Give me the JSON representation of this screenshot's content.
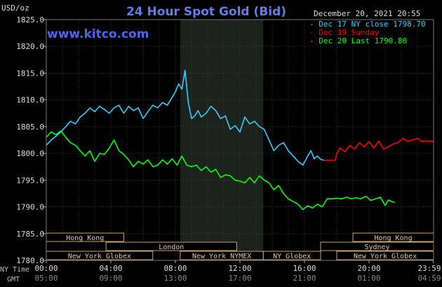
{
  "chart_data": {
    "type": "line",
    "title": "24 Hour Spot Gold (Bid)",
    "watermark": "www.kitco.com",
    "ylabel": "USD/oz",
    "date_label": "December 20, 2021 20:55",
    "ylim": [
      1780,
      1825
    ],
    "xlim_hours": [
      0,
      24
    ],
    "grid": true,
    "legend_position": "top-right",
    "y_ticks": [
      "1825.0",
      "1820.0",
      "1815.0",
      "1810.0",
      "1805.0",
      "1800.0",
      "1795.0",
      "1790.0",
      "1785.0",
      "1780.0"
    ],
    "y_tick_values": [
      1825,
      1820,
      1815,
      1810,
      1805,
      1800,
      1795,
      1790,
      1785,
      1780
    ],
    "x_tick_hours": [
      0,
      4,
      8,
      12,
      16,
      20,
      23.983
    ],
    "x_ticks_ny": [
      "00:00",
      "04:00",
      "08:00",
      "12:00",
      "16:00",
      "20:00",
      "23:59"
    ],
    "x_ticks_gmt": [
      "05:00",
      "09:00",
      "13:00",
      "17:00",
      "21:00",
      "01:00",
      "04:59"
    ],
    "row_label_ny": "NY Time",
    "row_label_gmt": "GMT",
    "highlight_hours": [
      8.3,
      13.45
    ],
    "sessions": [
      {
        "label": "Hong Kong",
        "start": 0,
        "end": 4.8,
        "row": 0,
        "align": "center"
      },
      {
        "label": "London",
        "start": 3.7,
        "end": 11.8,
        "row": 1,
        "align": "center"
      },
      {
        "label": "New York Globex",
        "start": 0,
        "end": 6.6,
        "row": 2,
        "align": "center"
      },
      {
        "label": "New York NYMEX",
        "start": 8.3,
        "end": 13.45,
        "row": 2,
        "align": "center"
      },
      {
        "label": "NY Globex",
        "start": 13.45,
        "end": 17.0,
        "row": 2,
        "align": "center"
      },
      {
        "label": "Hong Kong",
        "start": 19.0,
        "end": 24,
        "row": 0,
        "align": "center"
      },
      {
        "label": "Sydney",
        "start": 17.0,
        "end": 24,
        "row": 1,
        "align": "center"
      },
      {
        "label": "New York Globex",
        "start": 18.0,
        "end": 24,
        "row": 2,
        "align": "center"
      }
    ],
    "series": [
      {
        "name": "Dec 17 NY close 1798.70",
        "color": "#33ccff",
        "x": [
          0,
          0.3,
          0.6,
          0.9,
          1.2,
          1.5,
          1.8,
          2.1,
          2.4,
          2.7,
          3.0,
          3.3,
          3.6,
          3.9,
          4.2,
          4.5,
          4.8,
          5.1,
          5.4,
          5.7,
          6.0,
          6.3,
          6.6,
          6.9,
          7.2,
          7.5,
          7.8,
          8.0,
          8.2,
          8.4,
          8.6,
          8.8,
          9.0,
          9.2,
          9.4,
          9.6,
          9.9,
          10.2,
          10.5,
          10.8,
          11.1,
          11.4,
          11.7,
          12.0,
          12.3,
          12.6,
          12.9,
          13.2,
          13.5,
          13.8,
          14.1,
          14.4,
          14.7,
          15.0,
          15.3,
          15.6,
          15.9,
          16.2,
          16.4,
          16.6,
          16.8,
          17.0,
          17.2
        ],
        "y": [
          1801.5,
          1802.5,
          1803.2,
          1804.0,
          1805.0,
          1806.0,
          1805.5,
          1806.8,
          1807.5,
          1808.5,
          1807.8,
          1808.8,
          1808.2,
          1807.5,
          1808.5,
          1809.0,
          1807.5,
          1808.8,
          1808.0,
          1808.5,
          1806.5,
          1807.8,
          1809.0,
          1808.5,
          1809.5,
          1809.0,
          1810.5,
          1811.5,
          1813.0,
          1812.0,
          1815.5,
          1809.5,
          1806.5,
          1807.0,
          1808.0,
          1806.8,
          1807.5,
          1808.8,
          1808.0,
          1806.5,
          1807.0,
          1804.5,
          1805.2,
          1804.0,
          1806.8,
          1805.5,
          1806.0,
          1805.0,
          1804.5,
          1802.5,
          1800.5,
          1801.5,
          1802.0,
          1800.5,
          1799.5,
          1798.5,
          1797.8,
          1799.5,
          1800.5,
          1799.0,
          1799.5,
          1798.9,
          1798.7
        ]
      },
      {
        "name": "Dec 19 Sunday",
        "color": "#ff0000",
        "x": [
          17.2,
          17.5,
          17.9,
          18.0,
          18.2,
          18.5,
          18.8,
          19.1,
          19.4,
          19.7,
          20.0,
          20.3,
          20.6,
          20.9,
          21.2,
          21.5,
          21.8,
          22.1,
          22.4,
          22.7,
          23.0,
          23.3,
          23.6,
          23.98
        ],
        "y": [
          1798.7,
          1798.7,
          1798.7,
          1800.0,
          1801.0,
          1800.3,
          1801.5,
          1800.8,
          1802.0,
          1801.2,
          1802.2,
          1801.0,
          1802.3,
          1800.8,
          1801.2,
          1801.8,
          1802.0,
          1802.8,
          1802.2,
          1802.5,
          1802.8,
          1802.2,
          1802.3,
          1802.2
        ]
      },
      {
        "name": "Dec 20 Last 1790.80",
        "color": "#00ff00",
        "x": [
          0,
          0.3,
          0.6,
          0.9,
          1.2,
          1.5,
          1.8,
          2.1,
          2.4,
          2.7,
          3.0,
          3.3,
          3.6,
          3.9,
          4.2,
          4.5,
          4.8,
          5.1,
          5.4,
          5.7,
          6.0,
          6.3,
          6.6,
          6.9,
          7.2,
          7.5,
          7.8,
          8.1,
          8.4,
          8.7,
          9.0,
          9.3,
          9.6,
          9.9,
          10.2,
          10.5,
          10.8,
          11.1,
          11.4,
          11.7,
          12.0,
          12.3,
          12.6,
          12.9,
          13.2,
          13.5,
          13.8,
          14.1,
          14.4,
          14.7,
          15.0,
          15.3,
          15.6,
          15.9,
          16.2,
          16.5,
          16.8,
          17.1,
          17.4,
          17.7,
          18.0,
          18.3,
          18.6,
          18.9,
          19.2,
          19.5,
          19.8,
          20.1,
          20.4,
          20.7,
          21.0,
          21.2,
          21.4,
          21.6
        ],
        "y": [
          1803.0,
          1804.0,
          1803.5,
          1804.2,
          1803.0,
          1802.0,
          1801.5,
          1800.5,
          1799.5,
          1800.5,
          1798.5,
          1800.0,
          1799.8,
          1801.0,
          1802.5,
          1800.5,
          1799.8,
          1798.8,
          1797.5,
          1798.5,
          1798.0,
          1798.8,
          1797.5,
          1797.8,
          1798.8,
          1798.0,
          1799.0,
          1797.8,
          1799.5,
          1797.8,
          1797.5,
          1797.8,
          1796.8,
          1797.5,
          1796.5,
          1797.0,
          1795.5,
          1796.0,
          1795.8,
          1795.0,
          1794.8,
          1794.5,
          1795.5,
          1794.5,
          1795.8,
          1795.0,
          1794.5,
          1793.2,
          1794.0,
          1792.5,
          1791.5,
          1791.0,
          1790.5,
          1789.5,
          1790.2,
          1789.8,
          1790.5,
          1790.0,
          1791.5,
          1791.5,
          1791.6,
          1791.5,
          1791.8,
          1791.5,
          1791.7,
          1791.5,
          1792.0,
          1791.2,
          1791.5,
          1791.8,
          1790.3,
          1791.3,
          1791.0,
          1790.8
        ]
      }
    ]
  }
}
